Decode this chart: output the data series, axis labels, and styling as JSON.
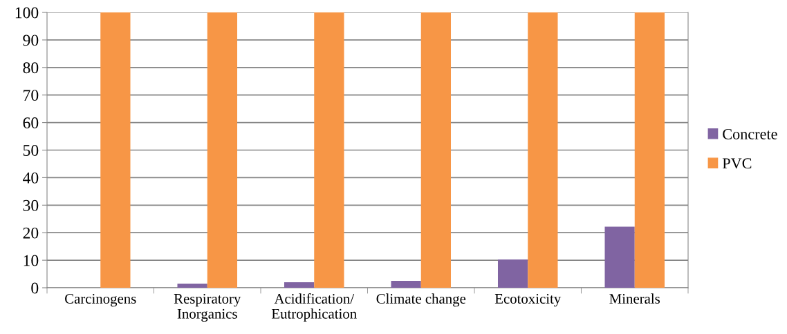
{
  "chart_data": {
    "type": "bar",
    "categories": [
      "Carcinogens",
      "Respiratory\nInorganics",
      "Acidification/\nEutrophication",
      "Climate change",
      "Ecotoxicity",
      "Minerals"
    ],
    "series": [
      {
        "name": "Concrete",
        "color": "#8064a2",
        "values": [
          0,
          1.5,
          2,
          2.5,
          10.3,
          22.2
        ]
      },
      {
        "name": "PVC",
        "color": "#f79646",
        "values": [
          100,
          100,
          100,
          100,
          100,
          100
        ]
      }
    ],
    "ylim": [
      0,
      100
    ],
    "yticks": [
      0,
      10,
      20,
      30,
      40,
      50,
      60,
      70,
      80,
      90,
      100
    ],
    "grid": "y",
    "legend": "right"
  }
}
